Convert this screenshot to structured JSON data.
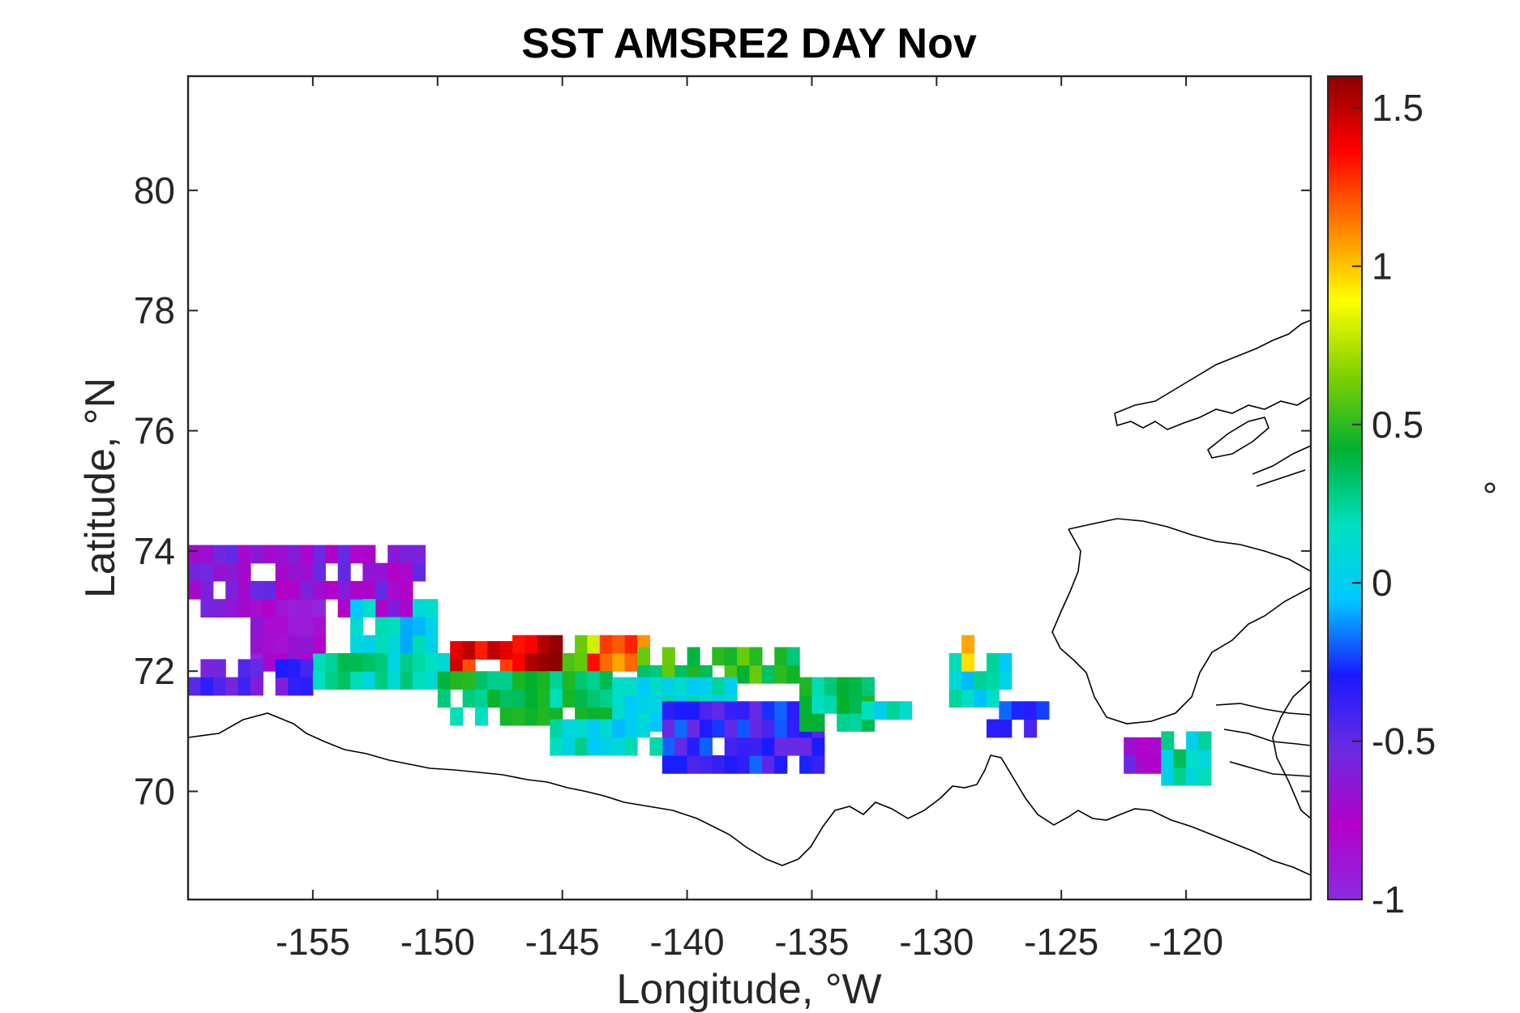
{
  "chart_data": {
    "type": "heatmap",
    "title": "SST AMSRE2 DAY Nov",
    "xlabel": "Longitude, °W",
    "ylabel": "Latitude, °N",
    "xlim": [
      -160,
      -115
    ],
    "ylim": [
      68.2,
      81.9
    ],
    "xticks": [
      -155,
      -150,
      -145,
      -140,
      -135,
      -130,
      -125,
      -120
    ],
    "yticks": [
      70,
      72,
      74,
      76,
      78,
      80
    ],
    "colorbar": {
      "label": "°",
      "range": [
        -1,
        1.6
      ],
      "ticks": [
        1.5,
        1,
        0.5,
        0,
        -0.5,
        -1
      ],
      "colormap": [
        "#8a2be2",
        "#b400c8",
        "#6a2be2",
        "#1a1aff",
        "#00c8ff",
        "#00e0c0",
        "#00b030",
        "#7fd000",
        "#ffff00",
        "#ff8000",
        "#ff0000",
        "#8b0000"
      ]
    },
    "grid": false,
    "data": {
      "lon_step": 0.5,
      "lat_step": 0.3,
      "regions": [
        {
          "lon": [
            -160,
            -150.5
          ],
          "lat": [
            72.9,
            73.9
          ],
          "value": -0.65
        },
        {
          "lon": [
            -157.5,
            -154.5
          ],
          "lat": [
            72.0,
            73.2
          ],
          "value": -0.8
        },
        {
          "lon": [
            -153.5,
            -150.0
          ],
          "lat": [
            72.3,
            73.0
          ],
          "value": 0.05
        },
        {
          "lon": [
            -160,
            -155.0
          ],
          "lat": [
            71.6,
            72.1
          ],
          "value": -0.45
        },
        {
          "lon": [
            -155.0,
            -149.5
          ],
          "lat": [
            71.7,
            72.3
          ],
          "value": 0.2
        },
        {
          "lon": [
            -149.5,
            -147.0
          ],
          "lat": [
            71.9,
            72.5
          ],
          "value": 1.35
        },
        {
          "lon": [
            -147.0,
            -145.0
          ],
          "lat": [
            72.0,
            72.5
          ],
          "value": 1.5
        },
        {
          "lon": [
            -145.0,
            -143.5
          ],
          "lat": [
            72.0,
            72.5
          ],
          "value": 0.7
        },
        {
          "lon": [
            -144.0,
            -141.5
          ],
          "lat": [
            72.0,
            72.5
          ],
          "value": 1.2
        },
        {
          "lon": [
            -142.0,
            -135.5
          ],
          "lat": [
            71.8,
            72.3
          ],
          "value": 0.45
        },
        {
          "lon": [
            -150.0,
            -143.0
          ],
          "lat": [
            71.1,
            71.9
          ],
          "value": 0.35
        },
        {
          "lon": [
            -143.0,
            -138.0
          ],
          "lat": [
            71.0,
            71.8
          ],
          "value": 0.1
        },
        {
          "lon": [
            -141.0,
            -134.5
          ],
          "lat": [
            70.3,
            71.3
          ],
          "value": -0.35
        },
        {
          "lon": [
            -145.5,
            -141.0
          ],
          "lat": [
            70.6,
            71.1
          ],
          "value": 0.1
        },
        {
          "lon": [
            -135.5,
            -132.5
          ],
          "lat": [
            71.0,
            71.7
          ],
          "value": 0.35
        },
        {
          "lon": [
            -133.0,
            -131.0
          ],
          "lat": [
            71.2,
            71.5
          ],
          "value": 0.1
        },
        {
          "lon": [
            -129.5,
            -127.0
          ],
          "lat": [
            71.4,
            72.3
          ],
          "value": 0.1
        },
        {
          "lon": [
            -129.0,
            -128.5
          ],
          "lat": [
            72.0,
            72.4
          ],
          "value": 1.1
        },
        {
          "lon": [
            -128.0,
            -125.5
          ],
          "lat": [
            70.9,
            71.4
          ],
          "value": -0.3
        },
        {
          "lon": [
            -122.5,
            -120.5
          ],
          "lat": [
            70.3,
            70.8
          ],
          "value": -0.7
        },
        {
          "lon": [
            -121.0,
            -119.0
          ],
          "lat": [
            70.1,
            70.9
          ],
          "value": 0.2
        }
      ]
    }
  }
}
